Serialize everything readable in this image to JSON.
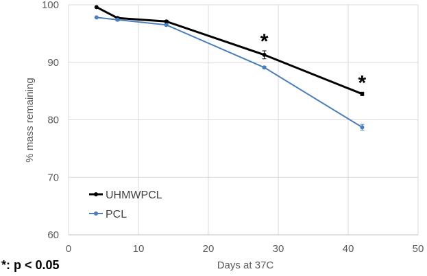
{
  "chart_data": {
    "type": "line",
    "title": "",
    "xlabel": "Days at 37C",
    "ylabel": "% mass remaining",
    "xlim": [
      0,
      50
    ],
    "ylim": [
      60,
      100
    ],
    "x_ticks": [
      0,
      10,
      20,
      30,
      40,
      50
    ],
    "y_ticks": [
      60,
      70,
      80,
      90,
      100
    ],
    "grid": "vertical and horizontal",
    "legend_position": "bottom-left",
    "series": [
      {
        "name": "UHMWPCL",
        "color": "#000000",
        "x": [
          4,
          7,
          14,
          28,
          42
        ],
        "y": [
          99.6,
          97.7,
          97.1,
          91.3,
          84.5
        ],
        "error": [
          0,
          0.2,
          0.2,
          0.7,
          0.3
        ]
      },
      {
        "name": "PCL",
        "color": "#4a7ebb",
        "x": [
          4,
          7,
          14,
          28,
          42
        ],
        "y": [
          97.8,
          97.4,
          96.5,
          89.1,
          78.7
        ],
        "error": [
          0,
          0.2,
          0.2,
          0.2,
          0.5
        ]
      }
    ],
    "annotations": [
      {
        "text": "*",
        "x": 28
      },
      {
        "text": "*",
        "x": 42
      }
    ],
    "footnote": "*: p < 0.05"
  }
}
